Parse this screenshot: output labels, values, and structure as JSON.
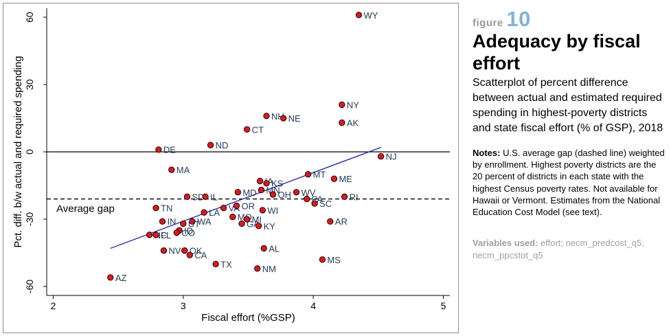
{
  "figure": {
    "label": "figure",
    "number": "10",
    "title": "Adequacy by fiscal effort",
    "subtitle": "Scatterplot of percent difference between actual and estimated required spending in highest-poverty districts and state fiscal effort (% of GSP), 2018",
    "notes_label": "Notes:",
    "notes_text": "U.S. average gap (dashed line) weighted by enrollment. Highest poverty districts are the 20 percent of districts in each state with the highest Census poverty rates. Not available for Hawaii or Vermont.  Estimates from the National Education Cost Model (see text).",
    "variables_label": "Variables used:",
    "variables_text": "effort; necm_predcost_q5; necm_ppcstot_q5"
  },
  "colors": {
    "point_fill": "#e8141b",
    "fit_line": "#1a1adc",
    "label_text": "#1f3a5a",
    "figure_number": "#7fb4dc",
    "muted": "#a0a0a0"
  },
  "chart_data": {
    "type": "scatter",
    "xlabel": "Fiscal effort (%GSP)",
    "ylabel": "Pct. diff. b/w actual and required spending",
    "xlim": [
      1.95,
      5.05
    ],
    "ylim": [
      -64,
      64
    ],
    "xticks": [
      2,
      3,
      4,
      5
    ],
    "yticks": [
      60,
      30,
      0,
      -30,
      -60
    ],
    "grid": false,
    "average_gap": {
      "label": "Average gap",
      "value": -21
    },
    "zero_line": 0,
    "fit_line": {
      "x": [
        2.44,
        4.52
      ],
      "y": [
        -43,
        2
      ]
    },
    "points": [
      {
        "label": "WY",
        "x": 4.35,
        "y": 61
      },
      {
        "label": "NY",
        "x": 4.22,
        "y": 21
      },
      {
        "label": "AK",
        "x": 4.22,
        "y": 13
      },
      {
        "label": "NH",
        "x": 3.64,
        "y": 16
      },
      {
        "label": "NE",
        "x": 3.77,
        "y": 15
      },
      {
        "label": "CT",
        "x": 3.49,
        "y": 10
      },
      {
        "label": "ND",
        "x": 3.21,
        "y": 3
      },
      {
        "label": "DE",
        "x": 2.81,
        "y": 1
      },
      {
        "label": "NJ",
        "x": 4.52,
        "y": -2
      },
      {
        "label": "MA",
        "x": 2.91,
        "y": -8
      },
      {
        "label": "MT",
        "x": 3.96,
        "y": -10
      },
      {
        "label": "ME",
        "x": 4.16,
        "y": -12
      },
      {
        "label": "IA",
        "x": 3.59,
        "y": -13
      },
      {
        "label": "KS",
        "x": 3.64,
        "y": -14
      },
      {
        "label": "MN",
        "x": 3.6,
        "y": -17
      },
      {
        "label": "MD",
        "x": 3.42,
        "y": -18
      },
      {
        "label": "OH",
        "x": 3.69,
        "y": -19
      },
      {
        "label": "WV",
        "x": 3.87,
        "y": -18
      },
      {
        "label": "SD",
        "x": 3.03,
        "y": -20
      },
      {
        "label": "IL",
        "x": 3.17,
        "y": -20
      },
      {
        "label": "RI",
        "x": 4.24,
        "y": -20
      },
      {
        "label": "PA",
        "x": 3.95,
        "y": -21
      },
      {
        "label": "SC",
        "x": 4.01,
        "y": -23
      },
      {
        "label": "TN",
        "x": 2.79,
        "y": -25
      },
      {
        "label": "VA",
        "x": 3.31,
        "y": -25
      },
      {
        "label": "OR",
        "x": 3.41,
        "y": -24
      },
      {
        "label": "WI",
        "x": 3.61,
        "y": -26
      },
      {
        "label": "LA",
        "x": 3.16,
        "y": -27
      },
      {
        "label": "MO",
        "x": 3.38,
        "y": -29
      },
      {
        "label": "IN",
        "x": 2.84,
        "y": -31
      },
      {
        "label": "WA",
        "x": 3.07,
        "y": -31
      },
      {
        "label": "UT",
        "x": 3.0,
        "y": -32
      },
      {
        "label": "GA",
        "x": 3.45,
        "y": -32
      },
      {
        "label": "MI",
        "x": 3.49,
        "y": -30
      },
      {
        "label": "KY",
        "x": 3.58,
        "y": -33
      },
      {
        "label": "AR",
        "x": 4.13,
        "y": -31
      },
      {
        "label": "ID",
        "x": 2.97,
        "y": -35
      },
      {
        "label": "CO",
        "x": 2.95,
        "y": -36
      },
      {
        "label": "NC",
        "x": 2.74,
        "y": -37
      },
      {
        "label": "FL",
        "x": 2.79,
        "y": -37
      },
      {
        "label": "NV",
        "x": 2.85,
        "y": -44
      },
      {
        "label": "OK",
        "x": 3.01,
        "y": -44
      },
      {
        "label": "CA",
        "x": 3.05,
        "y": -46
      },
      {
        "label": "AL",
        "x": 3.62,
        "y": -43
      },
      {
        "label": "MS",
        "x": 4.07,
        "y": -48
      },
      {
        "label": "TX",
        "x": 3.25,
        "y": -50
      },
      {
        "label": "NM",
        "x": 3.57,
        "y": -52
      },
      {
        "label": "AZ",
        "x": 2.44,
        "y": -56
      }
    ]
  }
}
